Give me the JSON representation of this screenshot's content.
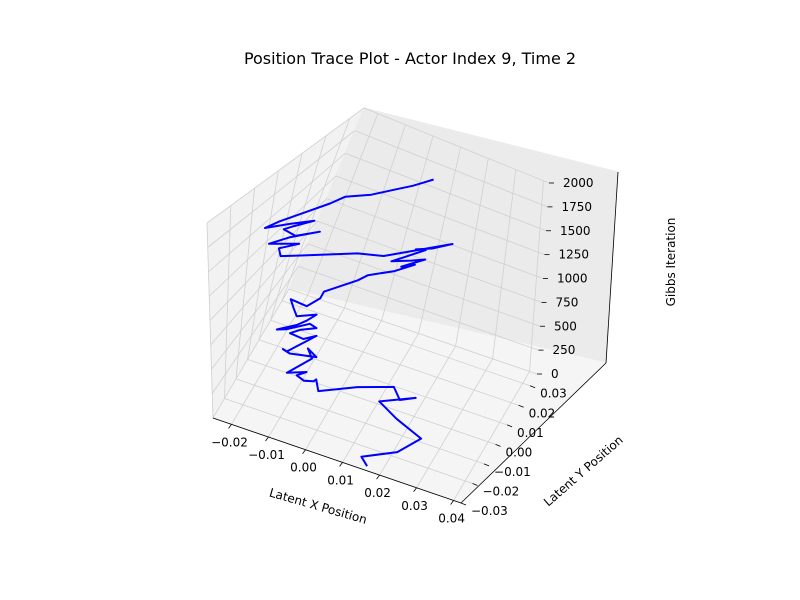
{
  "chart_data": {
    "type": "line",
    "projection": "3d",
    "title": "Position Trace Plot - Actor Index 9, Time 2",
    "xlabel": "Latent X Position",
    "ylabel": "Latent Y Position",
    "zlabel": "Gibbs Iteration",
    "xlim": [
      -0.025,
      0.042
    ],
    "ylim": [
      -0.03,
      0.036
    ],
    "zlim": [
      0,
      2000
    ],
    "x_ticks": [
      "−0.02",
      "−0.01",
      "0.00",
      "0.01",
      "0.02",
      "0.03",
      "0.04"
    ],
    "y_ticks": [
      "−0.03",
      "−0.02",
      "−0.01",
      "0.00",
      "0.01",
      "0.02",
      "0.03"
    ],
    "z_ticks": [
      "0",
      "250",
      "500",
      "750",
      "1000",
      "1250",
      "1500",
      "1750",
      "2000"
    ],
    "grid": true,
    "line_color": "#0000ff",
    "series": [
      {
        "points": [
          [
            0.016,
            -0.028,
            0
          ],
          [
            0.014,
            -0.026,
            30
          ],
          [
            0.022,
            -0.02,
            60
          ],
          [
            0.026,
            -0.012,
            90
          ],
          [
            0.018,
            -0.008,
            110
          ],
          [
            0.012,
            -0.004,
            130
          ],
          [
            0.02,
            0.002,
            150
          ],
          [
            0.017,
            -0.002,
            170
          ],
          [
            0.014,
            0.002,
            185
          ],
          [
            0.006,
            -0.004,
            200
          ],
          [
            -0.002,
            -0.012,
            215
          ],
          [
            -0.004,
            -0.008,
            230
          ],
          [
            -0.004,
            -0.01,
            250
          ],
          [
            -0.006,
            -0.012,
            270
          ],
          [
            -0.008,
            -0.012,
            300
          ],
          [
            -0.006,
            -0.01,
            320
          ],
          [
            -0.01,
            -0.014,
            340
          ],
          [
            -0.006,
            -0.006,
            380
          ],
          [
            -0.008,
            -0.004,
            420
          ],
          [
            -0.004,
            -0.008,
            460
          ],
          [
            -0.01,
            -0.012,
            500
          ],
          [
            -0.012,
            -0.012,
            520
          ],
          [
            -0.01,
            -0.014,
            560
          ],
          [
            -0.008,
            -0.012,
            600
          ],
          [
            -0.006,
            -0.01,
            640
          ],
          [
            -0.004,
            -0.008,
            680
          ],
          [
            -0.006,
            -0.012,
            700
          ],
          [
            -0.01,
            -0.012,
            710
          ],
          [
            -0.008,
            -0.01,
            730
          ],
          [
            -0.004,
            -0.008,
            760
          ],
          [
            -0.006,
            -0.008,
            780
          ],
          [
            -0.01,
            -0.014,
            790
          ],
          [
            -0.012,
            -0.016,
            800
          ],
          [
            -0.008,
            -0.012,
            820
          ],
          [
            -0.006,
            -0.01,
            850
          ],
          [
            -0.004,
            -0.008,
            900
          ],
          [
            -0.008,
            -0.012,
            910
          ],
          [
            -0.01,
            -0.01,
            930
          ],
          [
            -0.012,
            -0.008,
            960
          ],
          [
            -0.006,
            -0.01,
            1000
          ],
          [
            -0.004,
            -0.006,
            1030
          ],
          [
            -0.004,
            -0.004,
            1060
          ],
          [
            0.002,
            0.004,
            1100
          ],
          [
            0.004,
            0.006,
            1140
          ],
          [
            0.01,
            0.01,
            1180
          ],
          [
            0.014,
            0.014,
            1220
          ],
          [
            0.012,
            0.01,
            1250
          ],
          [
            0.016,
            0.016,
            1260
          ],
          [
            0.014,
            0.012,
            1300
          ],
          [
            0.01,
            0.008,
            1320
          ],
          [
            0.012,
            0.01,
            1340
          ],
          [
            0.016,
            0.016,
            1360
          ],
          [
            0.014,
            0.014,
            1380
          ],
          [
            0.018,
            0.016,
            1400
          ],
          [
            0.022,
            0.02,
            1420
          ],
          [
            0.01,
            0.004,
            1450
          ],
          [
            0.004,
            0.0,
            1480
          ],
          [
            -0.008,
            -0.01,
            1500
          ],
          [
            -0.012,
            -0.014,
            1520
          ],
          [
            -0.014,
            -0.012,
            1540
          ],
          [
            -0.01,
            -0.008,
            1560
          ],
          [
            -0.016,
            -0.014,
            1600
          ],
          [
            -0.012,
            -0.01,
            1640
          ],
          [
            -0.006,
            -0.004,
            1660
          ],
          [
            -0.01,
            -0.01,
            1680
          ],
          [
            -0.014,
            -0.01,
            1700
          ],
          [
            -0.012,
            -0.008,
            1720
          ],
          [
            -0.008,
            -0.004,
            1750
          ],
          [
            -0.012,
            -0.01,
            1780
          ],
          [
            -0.016,
            -0.016,
            1800
          ],
          [
            -0.014,
            -0.012,
            1820
          ],
          [
            -0.01,
            -0.006,
            1850
          ],
          [
            -0.006,
            0.0,
            1880
          ],
          [
            -0.004,
            0.004,
            1900
          ],
          [
            0.002,
            0.008,
            1920
          ],
          [
            0.006,
            0.012,
            1940
          ],
          [
            0.01,
            0.016,
            1960
          ],
          [
            0.012,
            0.018,
            1980
          ],
          [
            0.014,
            0.02,
            2000
          ]
        ]
      }
    ]
  }
}
